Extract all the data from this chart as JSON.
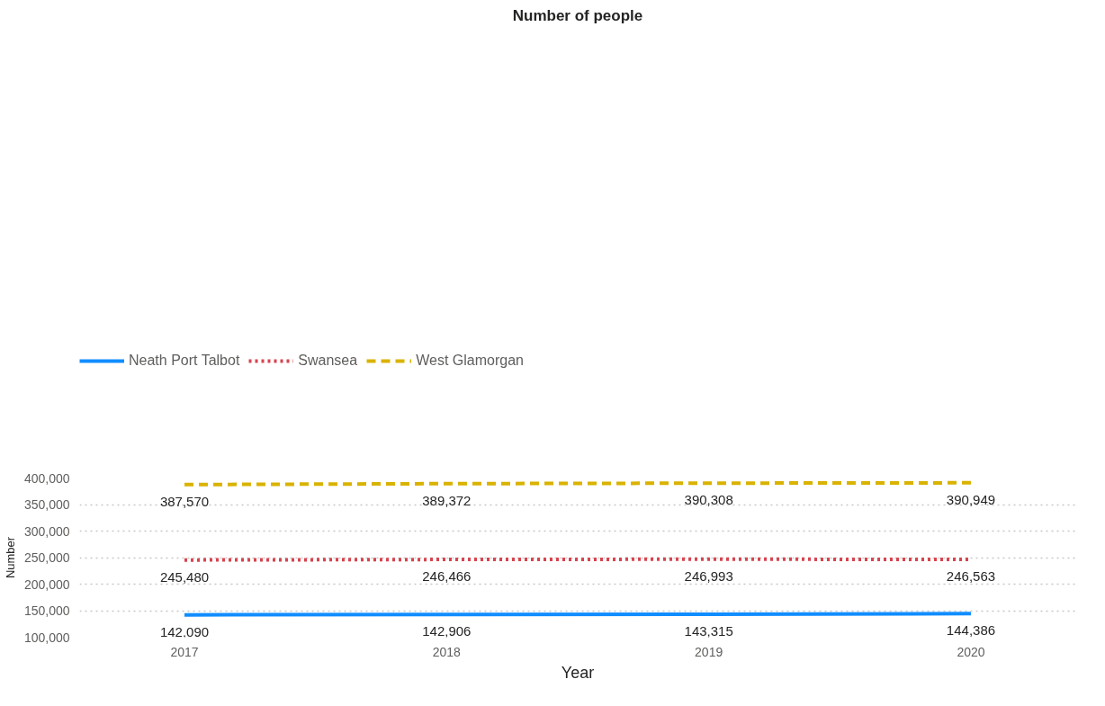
{
  "chart_data": {
    "type": "line",
    "title": "Number of people",
    "xlabel": "Year",
    "ylabel": "Number",
    "categories": [
      "2017",
      "2018",
      "2019",
      "2020"
    ],
    "series": [
      {
        "name": "Neath Port Talbot",
        "color": "#118dff",
        "line_style": "solid",
        "values": [
          142090,
          142906,
          143315,
          144386
        ],
        "value_labels": [
          "142,090",
          "142,906",
          "143,315",
          "144,386"
        ]
      },
      {
        "name": "Swansea",
        "color": "#d64550",
        "line_style": "dotted",
        "values": [
          245480,
          246466,
          246993,
          246563
        ],
        "value_labels": [
          "245,480",
          "246,466",
          "246,993",
          "246,563"
        ]
      },
      {
        "name": "West Glamorgan",
        "color": "#d9b300",
        "line_style": "dashed",
        "values": [
          387570,
          389372,
          390308,
          390949
        ],
        "value_labels": [
          "387,570",
          "389,372",
          "390,308",
          "390,949"
        ]
      }
    ],
    "ylim": [
      100000,
      400000
    ],
    "yticks": [
      {
        "value": 100000,
        "label": "100,000"
      },
      {
        "value": 150000,
        "label": "150,000"
      },
      {
        "value": 200000,
        "label": "200,000"
      },
      {
        "value": 250000,
        "label": "250,000"
      },
      {
        "value": 300000,
        "label": "300,000"
      },
      {
        "value": 350000,
        "label": "350,000"
      },
      {
        "value": 400000,
        "label": "400,000"
      }
    ],
    "grid": "y",
    "legend": "top left"
  }
}
